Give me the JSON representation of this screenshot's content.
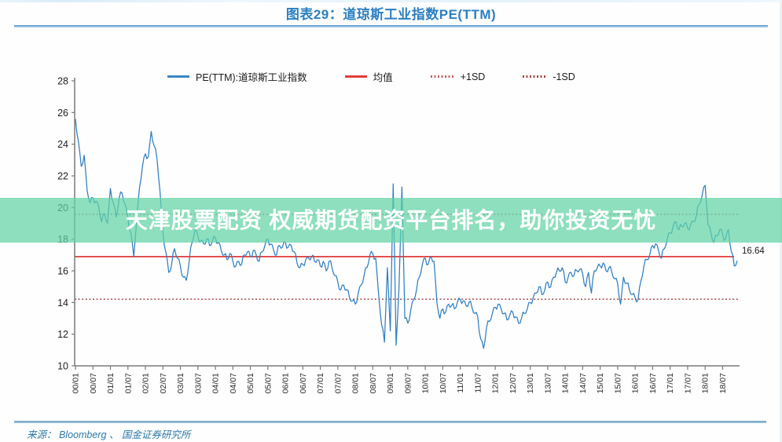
{
  "title": "图表29：道琼斯工业指数PE(TTM)",
  "source": "来源： Bloomberg 、 国金证券研究所",
  "overlay": {
    "text": "天津股票配资 权威期货配资平台排名，助你投资无忧",
    "band_color": "#61d3a5"
  },
  "annotation": {
    "last_value_label": "16.64"
  },
  "legend": [
    {
      "label": "PE(TTM):道琼斯工业指数",
      "style": "solid",
      "color": "#3b86c6"
    },
    {
      "label": "均值",
      "style": "solid",
      "color": "#e23b3b"
    },
    {
      "label": "+1SD",
      "style": "dotted",
      "color": "#c06060"
    },
    {
      "label": "-1SD",
      "style": "dotted",
      "color": "#a84848"
    }
  ],
  "chart_data": {
    "type": "line",
    "title": "道琼斯工业指数PE(TTM)",
    "ylim": [
      10,
      28
    ],
    "y_ticks": [
      28,
      26,
      24,
      22,
      20,
      18,
      16,
      14,
      12,
      10
    ],
    "x_tick_labels": [
      "00/01",
      "00/07",
      "01/01",
      "01/07",
      "02/01",
      "02/07",
      "03/01",
      "03/07",
      "04/01",
      "04/07",
      "05/01",
      "05/07",
      "06/01",
      "06/07",
      "07/01",
      "07/07",
      "08/01",
      "08/07",
      "09/01",
      "09/07",
      "10/01",
      "10/07",
      "11/01",
      "11/07",
      "12/01",
      "12/07",
      "13/01",
      "13/07",
      "14/01",
      "14/07",
      "15/01",
      "15/07",
      "16/01",
      "16/07",
      "17/01",
      "17/07",
      "18/01",
      "18/07"
    ],
    "x_monthly_start": "2000-01",
    "x_monthly_end": "2018-12",
    "months_per_tick": 6,
    "grid": false,
    "legend_position": "top",
    "series": [
      {
        "name": "PE(TTM):道琼斯工业指数",
        "color": "#2f7fc1",
        "values": [
          25.6,
          24.2,
          22.6,
          23.3,
          21.1,
          20.3,
          20.6,
          20.4,
          20.0,
          19.1,
          19.6,
          19.0,
          21.2,
          20.3,
          19.4,
          20.6,
          20.9,
          20.2,
          19.3,
          18.4,
          16.9,
          19.2,
          21.3,
          22.6,
          23.4,
          23.2,
          24.8,
          23.9,
          23.0,
          21.0,
          18.4,
          17.2,
          15.9,
          16.4,
          17.4,
          16.8,
          16.3,
          15.6,
          15.4,
          16.6,
          17.8,
          18.6,
          18.2,
          17.9,
          17.7,
          18.0,
          17.6,
          17.9,
          18.1,
          17.8,
          17.3,
          17.0,
          16.7,
          17.1,
          16.6,
          16.3,
          16.6,
          16.4,
          17.0,
          17.2,
          16.9,
          17.3,
          17.0,
          16.6,
          17.2,
          17.6,
          18.0,
          17.7,
          17.3,
          17.0,
          17.6,
          17.5,
          17.8,
          17.5,
          17.6,
          17.2,
          16.5,
          16.2,
          16.4,
          16.7,
          16.8,
          16.9,
          16.6,
          16.7,
          16.3,
          16.6,
          16.0,
          16.6,
          16.2,
          15.7,
          15.3,
          14.8,
          15.1,
          14.8,
          14.3,
          14.1,
          13.9,
          14.6,
          15.1,
          15.7,
          16.2,
          17.0,
          17.1,
          16.8,
          14.5,
          12.6,
          11.5,
          16.2,
          12.2,
          21.5,
          11.3,
          15.0,
          21.3,
          13.0,
          12.7,
          13.5,
          14.2,
          14.8,
          15.6,
          16.4,
          16.8,
          16.4,
          16.9,
          16.6,
          14.0,
          13.0,
          13.6,
          13.4,
          13.9,
          13.8,
          13.6,
          14.0,
          14.2,
          14.1,
          13.8,
          14.0,
          13.7,
          13.3,
          13.1,
          11.7,
          11.1,
          12.4,
          12.8,
          13.3,
          13.7,
          13.9,
          13.6,
          13.3,
          12.9,
          13.2,
          13.4,
          13.1,
          12.7,
          13.0,
          13.3,
          13.6,
          14.0,
          14.3,
          14.6,
          15.0,
          14.5,
          14.8,
          15.3,
          15.0,
          15.6,
          15.9,
          16.0,
          16.2,
          15.3,
          15.6,
          15.9,
          15.7,
          16.0,
          16.1,
          15.8,
          15.0,
          15.9,
          14.6,
          16.0,
          16.2,
          16.3,
          16.5,
          16.0,
          16.2,
          15.9,
          15.5,
          15.2,
          13.9,
          15.6,
          15.2,
          14.8,
          14.5,
          14.3,
          14.2,
          15.4,
          16.3,
          16.7,
          17.0,
          17.6,
          17.7,
          17.3,
          16.8,
          17.4,
          18.0,
          18.4,
          18.8,
          19.1,
          18.6,
          18.8,
          19.0,
          18.7,
          18.9,
          19.1,
          19.5,
          20.2,
          20.8,
          21.4,
          18.9,
          18.4,
          17.8,
          18.2,
          18.6,
          18.3,
          18.0,
          18.6,
          17.2,
          16.3,
          16.64
        ]
      }
    ],
    "reference_lines": [
      {
        "name": "均值",
        "value": 16.9,
        "style": "solid",
        "color": "#e23b3b"
      },
      {
        "name": "+1SD",
        "value": 19.57,
        "style": "dotted",
        "color": "#c06060"
      },
      {
        "name": "-1SD",
        "value": 14.21,
        "style": "dotted",
        "color": "#a84848"
      }
    ],
    "last_value": 16.64
  }
}
